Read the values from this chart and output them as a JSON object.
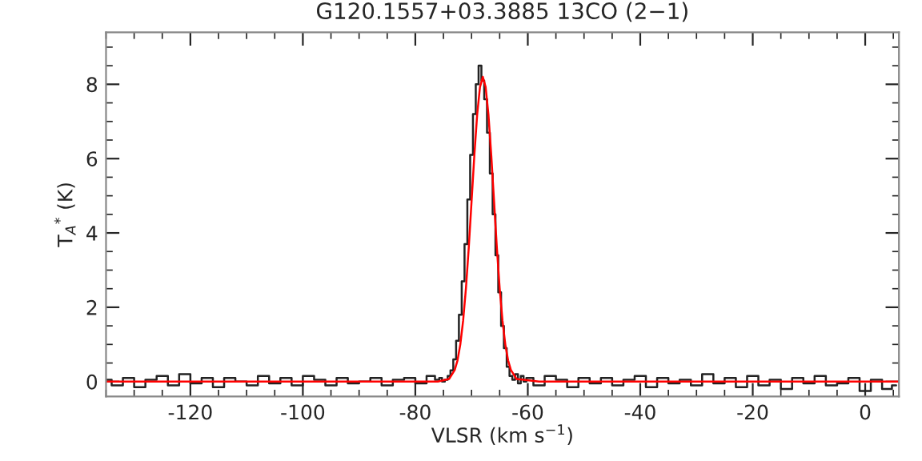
{
  "chart_data": {
    "type": "step",
    "title": "G120.1557+03.3885 13CO (2−1)",
    "xlabel": "VLSR (km s$^{−1}$)",
    "ylabel": "T$_{A}$$^{*}$ (K)",
    "xlim": [
      -135,
      6
    ],
    "ylim": [
      -0.4,
      9.4
    ],
    "xticks": [
      -120,
      -100,
      -80,
      -60,
      -40,
      -20,
      0
    ],
    "yticks": [
      0,
      2,
      4,
      6,
      8
    ],
    "grid": false,
    "series": [
      {
        "color": "#222222",
        "x": [
          -135,
          -133,
          -131,
          -129,
          -127,
          -125,
          -123,
          -121,
          -119,
          -117,
          -115,
          -113,
          -111,
          -109,
          -107,
          -105,
          -103,
          -101,
          -99,
          -97,
          -95,
          -93,
          -91,
          -89,
          -87,
          -85,
          -83,
          -81,
          -79,
          -77,
          -76,
          -75.5,
          -75,
          -74.5,
          -74,
          -73.5,
          -73,
          -72.5,
          -72,
          -71.5,
          -71,
          -70.5,
          -70,
          -69.5,
          -69,
          -68.5,
          -68,
          -67.5,
          -67,
          -66.5,
          -66,
          -65.5,
          -65,
          -64.5,
          -64,
          -63.5,
          -63,
          -62.5,
          -62,
          -61.5,
          -61,
          -60.5,
          -60,
          -58,
          -56,
          -54,
          -52,
          -50,
          -48,
          -46,
          -44,
          -42,
          -40,
          -38,
          -36,
          -34,
          -32,
          -30,
          -28,
          -26,
          -24,
          -22,
          -20,
          -18,
          -16,
          -14,
          -12,
          -10,
          -8,
          -6,
          -4,
          -2,
          0,
          2,
          4,
          5.5
        ],
        "values": [
          0.05,
          -0.1,
          0.1,
          -0.15,
          0.05,
          0.15,
          -0.1,
          0.2,
          -0.05,
          0.1,
          -0.15,
          0.1,
          0.0,
          -0.1,
          0.15,
          -0.05,
          0.1,
          -0.1,
          0.15,
          0.05,
          -0.1,
          0.1,
          -0.05,
          0.0,
          0.1,
          -0.1,
          0.05,
          0.1,
          -0.05,
          0.15,
          0.05,
          0.1,
          0.0,
          0.05,
          0.15,
          0.3,
          0.6,
          1.1,
          1.8,
          2.7,
          3.7,
          4.9,
          6.1,
          7.2,
          8.0,
          8.5,
          8.1,
          7.6,
          6.7,
          5.6,
          4.5,
          3.4,
          2.4,
          1.5,
          0.9,
          0.4,
          0.15,
          0.05,
          0.2,
          -0.05,
          0.15,
          0.0,
          0.1,
          -0.1,
          0.15,
          0.05,
          -0.15,
          0.1,
          -0.05,
          0.1,
          -0.1,
          0.05,
          0.15,
          -0.15,
          0.1,
          -0.05,
          0.05,
          -0.1,
          0.2,
          -0.05,
          0.1,
          -0.15,
          0.15,
          -0.1,
          0.05,
          -0.2,
          0.1,
          -0.05,
          0.15,
          -0.1,
          -0.05,
          0.1,
          -0.25,
          0.05,
          -0.2,
          -0.1
        ]
      },
      {
        "type": "line",
        "color": "#ff0000",
        "x": [
          -135,
          -80,
          -76,
          -74,
          -73,
          -72.5,
          -72,
          -71.5,
          -71,
          -70.5,
          -70,
          -69.5,
          -69,
          -68.5,
          -68,
          -67.5,
          -67,
          -66.5,
          -66,
          -65.5,
          -65,
          -64.5,
          -64,
          -63.5,
          -63,
          -62,
          -58,
          6
        ],
        "values": [
          0,
          0,
          0,
          0.07,
          0.31,
          0.57,
          1.0,
          1.64,
          2.51,
          3.6,
          4.85,
          6.1,
          7.19,
          7.93,
          8.2,
          7.93,
          7.19,
          6.1,
          4.85,
          3.6,
          2.51,
          1.64,
          1.0,
          0.57,
          0.31,
          0.07,
          0,
          0
        ]
      }
    ]
  }
}
